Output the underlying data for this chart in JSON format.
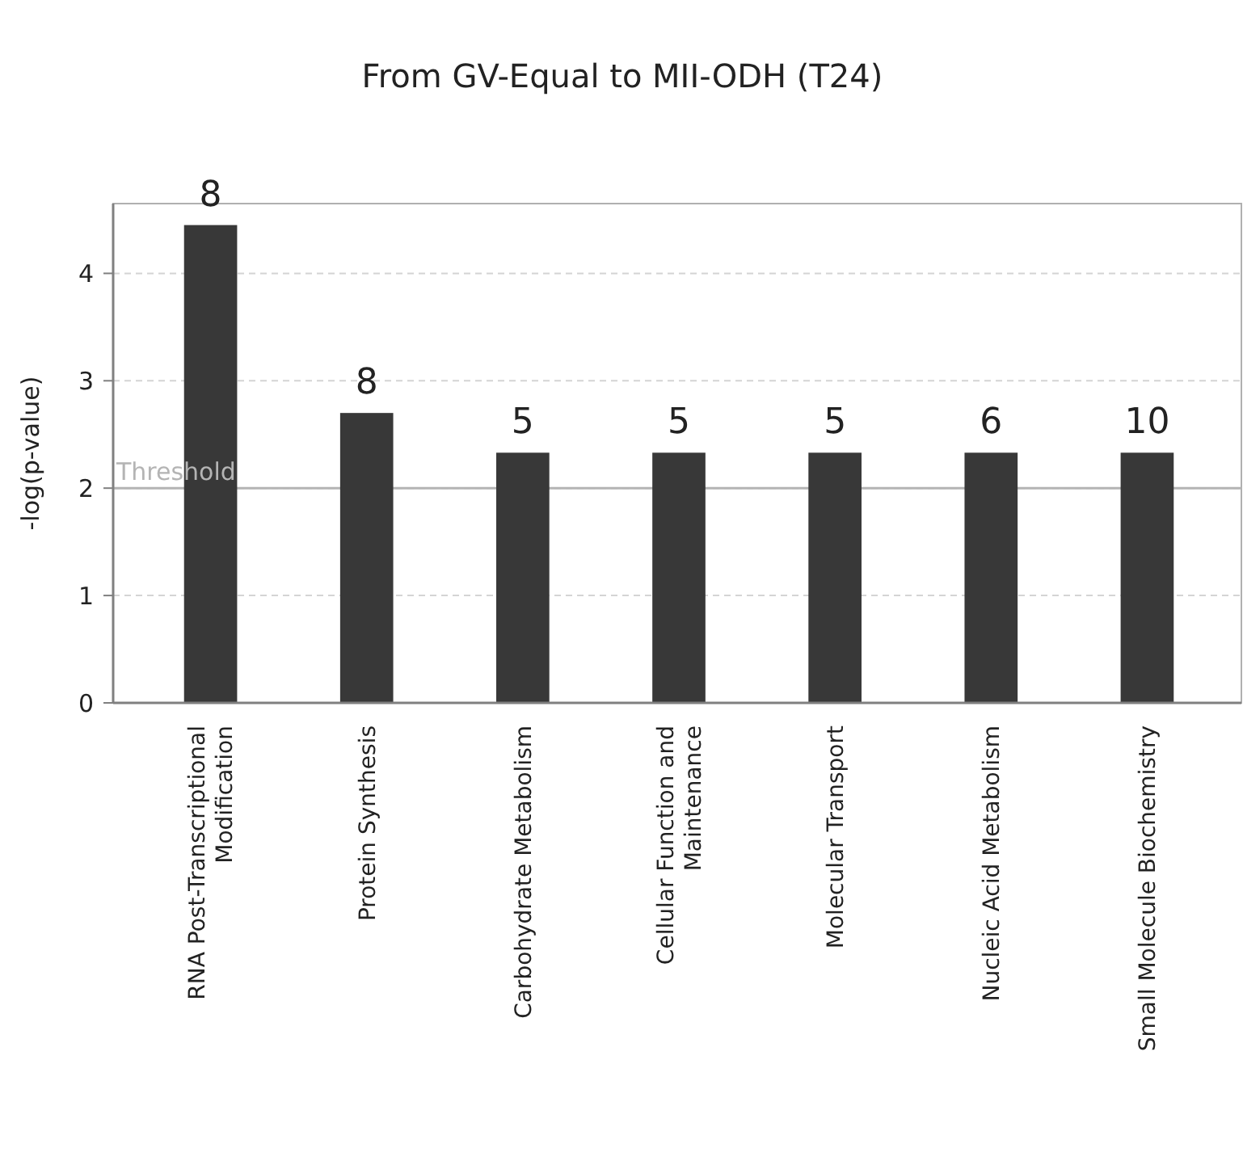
{
  "chart_data": {
    "type": "bar",
    "title": "From GV-Equal to MII-ODH (T24)",
    "ylabel": "-log(p-value)",
    "categories": [
      "RNA Post-Transcriptional Modification",
      "Protein Synthesis",
      "Carbohydrate Metabolism",
      "Cellular Function and Maintenance",
      "Molecular Transport",
      "Nucleic Acid Metabolism",
      "Small Molecule Biochemistry"
    ],
    "values": [
      4.45,
      2.7,
      2.33,
      2.33,
      2.33,
      2.33,
      2.33
    ],
    "annotations": [
      {
        "text": "8",
        "x": "RNA Post-Transcriptional Modification",
        "y": 4.45
      },
      {
        "text": "8",
        "x": "Protein Synthesis",
        "y": 2.7
      },
      {
        "text": "5",
        "x": "Carbohydrate Metabolism",
        "y": 2.33
      },
      {
        "text": "5",
        "x": "Cellular Function and Maintenance",
        "y": 2.33
      },
      {
        "text": "5",
        "x": "Molecular Transport",
        "y": 2.33
      },
      {
        "text": "6",
        "x": "Nucleic Acid Metabolism",
        "y": 2.33
      },
      {
        "text": "10",
        "x": "Small Molecule Biochemistry",
        "y": 2.33
      }
    ],
    "color": "#383838",
    "ylim": [
      0,
      4.65
    ],
    "yticks": [
      0,
      1,
      2,
      3,
      4
    ],
    "grid": "y",
    "ref_lines": [
      {
        "axis": "y",
        "value": 2,
        "label": "Threshold",
        "color": "#b4b4b4"
      }
    ]
  }
}
